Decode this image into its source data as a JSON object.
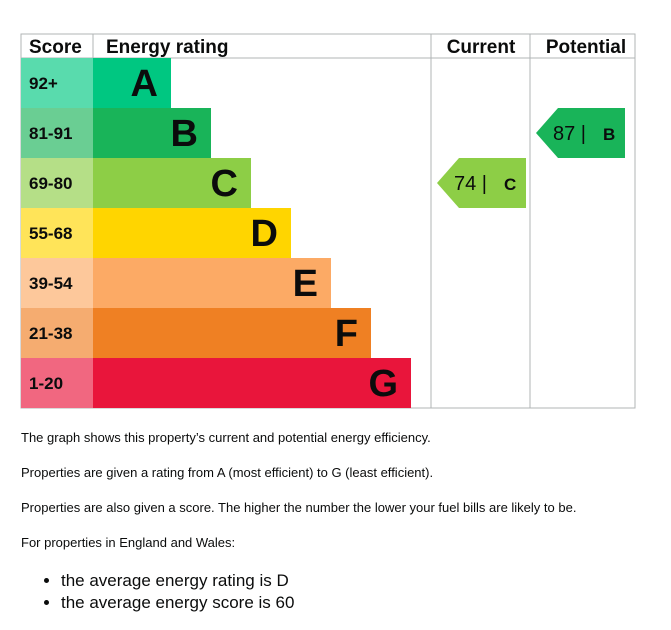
{
  "chart_data": {
    "type": "bar",
    "headers": {
      "score": "Score",
      "energy_rating": "Energy rating",
      "current": "Current",
      "potential": "Potential"
    },
    "bands": [
      {
        "letter": "A",
        "score_range": "92+",
        "color": "#00c781"
      },
      {
        "letter": "B",
        "score_range": "81-91",
        "color": "#19b459"
      },
      {
        "letter": "C",
        "score_range": "69-80",
        "color": "#8dce46"
      },
      {
        "letter": "D",
        "score_range": "55-68",
        "color": "#ffd500"
      },
      {
        "letter": "E",
        "score_range": "39-54",
        "color": "#fcaa65"
      },
      {
        "letter": "F",
        "score_range": "21-38",
        "color": "#ef8023"
      },
      {
        "letter": "G",
        "score_range": "1-20",
        "color": "#e9153b"
      }
    ],
    "current": {
      "score": 74,
      "letter": "C",
      "label": "74 |",
      "color": "#8dce46"
    },
    "potential": {
      "score": 87,
      "letter": "B",
      "label": "87 |",
      "color": "#19b459"
    },
    "grid_color": "#b1b4b6"
  },
  "info": {
    "p1": "The graph shows this property’s current and potential energy efficiency.",
    "p2": "Properties are given a rating from A (most efficient) to G (least efficient).",
    "p3": "Properties are also given a score. The higher the number the lower your fuel bills are likely to be.",
    "p4": "For properties in England and Wales:",
    "bullets": [
      "the average energy rating is D",
      "the average energy score is 60"
    ]
  }
}
